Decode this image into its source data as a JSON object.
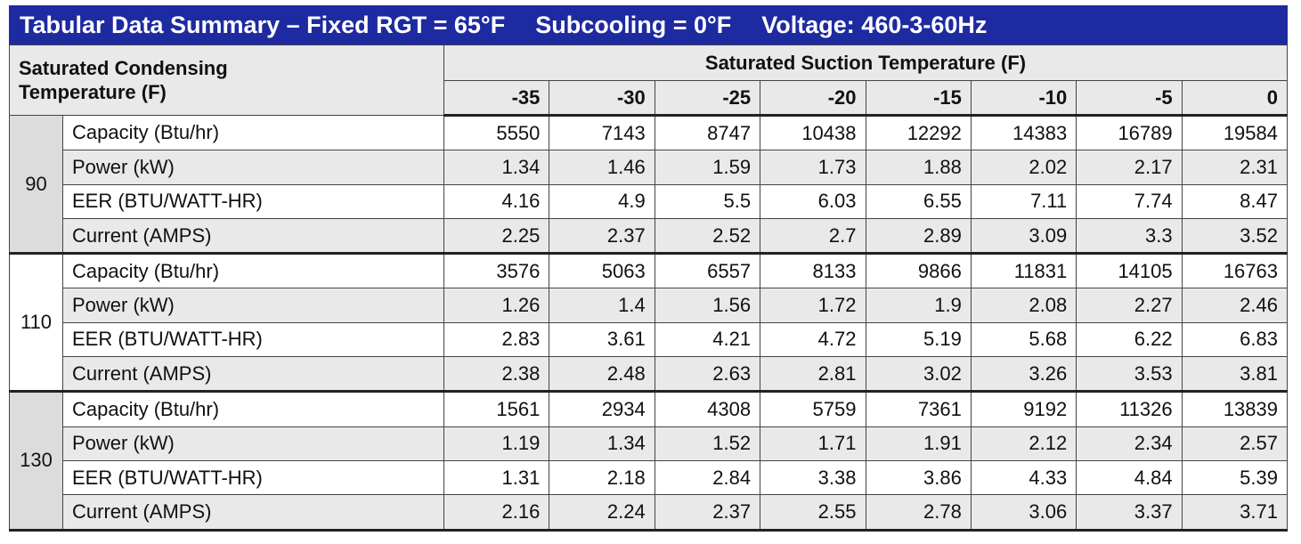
{
  "header": {
    "title": [
      "Tabular Data Summary – Fixed RGT = 65°F",
      "Subcooling = 0°F",
      "Voltage: 460-3-60Hz"
    ]
  },
  "table": {
    "corner_header": "Saturated Condensing Temperature (F)",
    "column_group_header": "Saturated Suction Temperature (F)",
    "columns": [
      -35,
      -30,
      -25,
      -20,
      -15,
      -10,
      -5,
      0
    ],
    "groups": [
      {
        "label": 90,
        "rows": [
          {
            "label": "Capacity (Btu/hr)",
            "values": [
              5550,
              7143,
              8747,
              10438,
              12292,
              14383,
              16789,
              19584
            ]
          },
          {
            "label": "Power (kW)",
            "values": [
              1.34,
              1.46,
              1.59,
              1.73,
              1.88,
              2.02,
              2.17,
              2.31
            ]
          },
          {
            "label": "EER (BTU/WATT-HR)",
            "values": [
              4.16,
              4.9,
              5.5,
              6.03,
              6.55,
              7.11,
              7.74,
              8.47
            ]
          },
          {
            "label": "Current (AMPS)",
            "values": [
              2.25,
              2.37,
              2.52,
              2.7,
              2.89,
              3.09,
              3.3,
              3.52
            ]
          }
        ]
      },
      {
        "label": 110,
        "rows": [
          {
            "label": "Capacity (Btu/hr)",
            "values": [
              3576,
              5063,
              6557,
              8133,
              9866,
              11831,
              14105,
              16763
            ]
          },
          {
            "label": "Power (kW)",
            "values": [
              1.26,
              1.4,
              1.56,
              1.72,
              1.9,
              2.08,
              2.27,
              2.46
            ]
          },
          {
            "label": "EER (BTU/WATT-HR)",
            "values": [
              2.83,
              3.61,
              4.21,
              4.72,
              5.19,
              5.68,
              6.22,
              6.83
            ]
          },
          {
            "label": "Current (AMPS)",
            "values": [
              2.38,
              2.48,
              2.63,
              2.81,
              3.02,
              3.26,
              3.53,
              3.81
            ]
          }
        ]
      },
      {
        "label": 130,
        "rows": [
          {
            "label": "Capacity (Btu/hr)",
            "values": [
              1561,
              2934,
              4308,
              5759,
              7361,
              9192,
              11326,
              13839
            ]
          },
          {
            "label": "Power (kW)",
            "values": [
              1.19,
              1.34,
              1.52,
              1.71,
              1.91,
              2.12,
              2.34,
              2.57
            ]
          },
          {
            "label": "EER (BTU/WATT-HR)",
            "values": [
              1.31,
              2.18,
              2.84,
              3.38,
              3.86,
              4.33,
              4.84,
              5.39
            ]
          },
          {
            "label": "Current (AMPS)",
            "values": [
              2.16,
              2.24,
              2.37,
              2.55,
              2.78,
              3.06,
              3.37,
              3.71
            ]
          }
        ]
      }
    ]
  }
}
